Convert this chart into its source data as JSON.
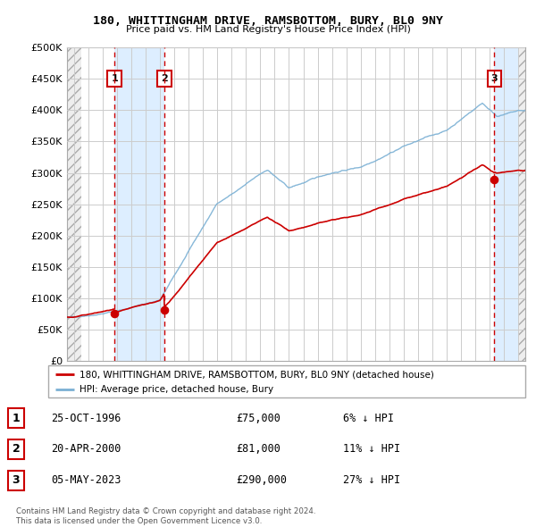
{
  "title": "180, WHITTINGHAM DRIVE, RAMSBOTTOM, BURY, BL0 9NY",
  "subtitle": "Price paid vs. HM Land Registry's House Price Index (HPI)",
  "legend_line1": "180, WHITTINGHAM DRIVE, RAMSBOTTOM, BURY, BL0 9NY (detached house)",
  "legend_line2": "HPI: Average price, detached house, Bury",
  "footer1": "Contains HM Land Registry data © Crown copyright and database right 2024.",
  "footer2": "This data is licensed under the Open Government Licence v3.0.",
  "transactions": [
    {
      "num": 1,
      "date": "25-OCT-1996",
      "price": 75000,
      "pct": "6%",
      "dir": "↓",
      "x": 1996.82
    },
    {
      "num": 2,
      "date": "20-APR-2000",
      "price": 81000,
      "pct": "11%",
      "dir": "↓",
      "x": 2000.3
    },
    {
      "num": 3,
      "date": "05-MAY-2023",
      "price": 290000,
      "pct": "27%",
      "dir": "↓",
      "x": 2023.34
    }
  ],
  "ylim": [
    0,
    500000
  ],
  "yticks": [
    0,
    50000,
    100000,
    150000,
    200000,
    250000,
    300000,
    350000,
    400000,
    450000,
    500000
  ],
  "ytick_labels": [
    "£0",
    "£50K",
    "£100K",
    "£150K",
    "£200K",
    "£250K",
    "£300K",
    "£350K",
    "£400K",
    "£450K",
    "£500K"
  ],
  "xlim": [
    1993.5,
    2025.5
  ],
  "xticks": [
    1994,
    1995,
    1996,
    1997,
    1998,
    1999,
    2000,
    2001,
    2002,
    2003,
    2004,
    2005,
    2006,
    2007,
    2008,
    2009,
    2010,
    2011,
    2012,
    2013,
    2014,
    2015,
    2016,
    2017,
    2018,
    2019,
    2020,
    2021,
    2022,
    2023,
    2024,
    2025
  ],
  "hpi_color": "#7ab0d4",
  "property_color": "#cc0000",
  "dashed_line_color": "#cc0000",
  "shade_color": "#ddeeff",
  "hatch_color": "#d0d0d0",
  "grid_color": "#cccccc",
  "box_border_color": "#cc0000",
  "box_face_color": "#ffffff"
}
